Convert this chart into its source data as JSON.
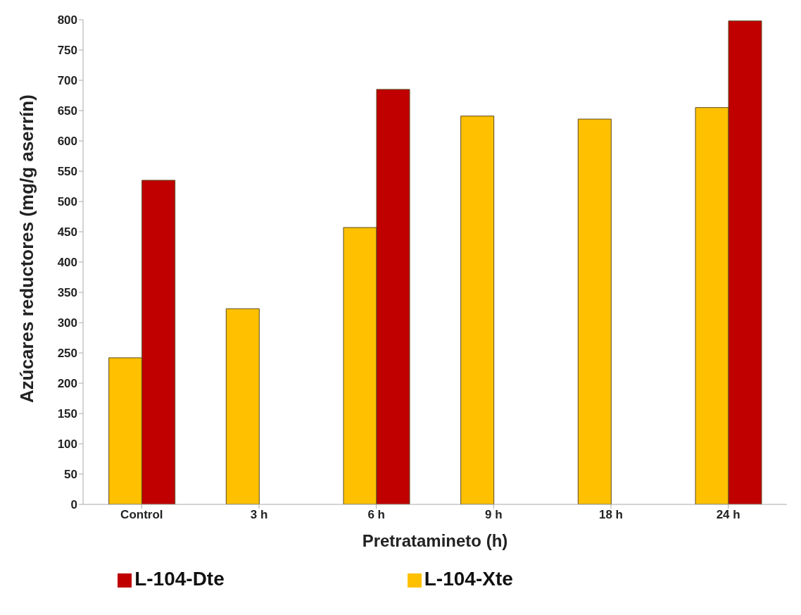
{
  "chart_data": {
    "type": "bar",
    "xlabel": "Pretratamineto (h)",
    "ylabel": "Azúcares reductores (mg/g aserrín)",
    "categories": [
      "Control",
      "3 h",
      "6 h",
      "9 h",
      "18 h",
      "24 h"
    ],
    "series": [
      {
        "name": "L-104-Xte",
        "color": "#ffc000",
        "values": [
          242,
          323,
          457,
          641,
          636,
          655
        ]
      },
      {
        "name": "L-104-Dte",
        "color": "#c00000",
        "values": [
          535,
          null,
          685,
          null,
          null,
          798
        ]
      }
    ],
    "ylim": [
      0,
      800
    ],
    "yticks": [
      0,
      50,
      100,
      150,
      200,
      250,
      300,
      350,
      400,
      450,
      500,
      550,
      600,
      650,
      700,
      750,
      800
    ],
    "grid": false,
    "legend": "bottom"
  }
}
